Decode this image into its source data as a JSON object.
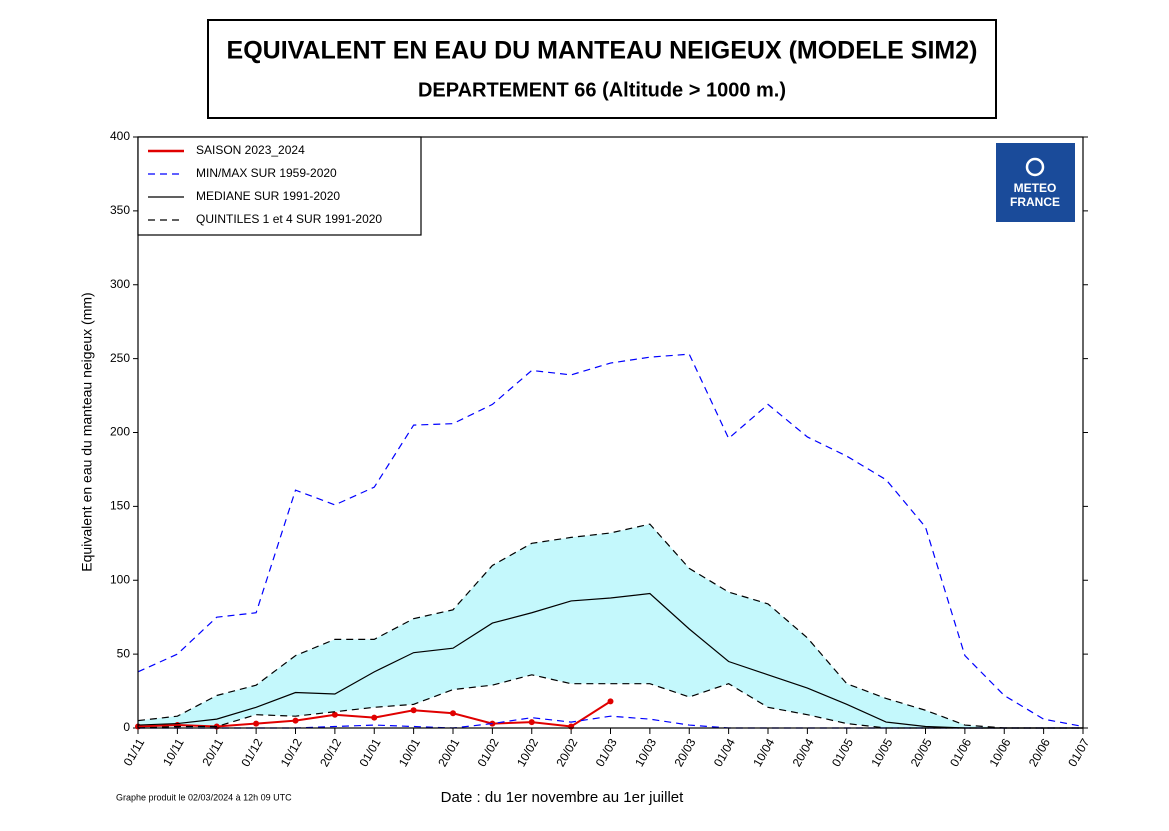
{
  "chart_data": {
    "type": "line",
    "title": "EQUIVALENT EN EAU DU MANTEAU NEIGEUX (MODELE SIM2)",
    "subtitle": "DEPARTEMENT 66  (Altitude > 1000 m.)",
    "y_label": "Equivalent en eau du manteau neigeux (mm)",
    "x_label": "Date : du 1er novembre au 1er juillet",
    "footnote": "Graphe produit le 02/03/2024 à 12h 09 UTC",
    "logo": [
      "METEO",
      "FRANCE"
    ],
    "categories": [
      "01/11",
      "10/11",
      "20/11",
      "01/12",
      "10/12",
      "20/12",
      "01/01",
      "10/01",
      "20/01",
      "01/02",
      "10/02",
      "20/02",
      "01/03",
      "10/03",
      "20/03",
      "01/04",
      "10/04",
      "20/04",
      "01/05",
      "10/05",
      "20/05",
      "01/06",
      "10/06",
      "20/06",
      "01/07"
    ],
    "ylim": [
      0,
      400
    ],
    "yticks": [
      0,
      50,
      100,
      150,
      200,
      250,
      300,
      350,
      400
    ],
    "series": [
      {
        "name": "SAISON 2023_2024",
        "color": "#e00000",
        "style": "solid",
        "markers": true,
        "values": [
          1,
          2,
          1,
          3,
          5,
          9,
          7,
          12,
          10,
          3,
          4,
          1,
          18,
          null,
          null,
          null,
          null,
          null,
          null,
          null,
          null,
          null,
          null,
          null,
          null
        ]
      },
      {
        "name": "MIN/MAX SUR 1959-2020",
        "color": "#0000ff",
        "style": "dashed",
        "values": [
          38,
          50,
          75,
          78,
          161,
          151,
          163,
          205,
          206,
          219,
          242,
          239,
          247,
          251,
          253,
          196,
          219,
          197,
          184,
          168,
          136,
          49,
          22,
          6,
          1
        ],
        "values_low": [
          0,
          0,
          0,
          0,
          0,
          1,
          2,
          1,
          0,
          3,
          7,
          4,
          8,
          6,
          2,
          0,
          0,
          0,
          0,
          0,
          0,
          0,
          0,
          0,
          0
        ]
      },
      {
        "name": "MEDIANE SUR 1991-2020",
        "color": "#000000",
        "style": "solid",
        "values": [
          2,
          3,
          6,
          14,
          24,
          23,
          38,
          51,
          54,
          71,
          78,
          86,
          88,
          91,
          67,
          45,
          36,
          27,
          16,
          4,
          1,
          0,
          0,
          0,
          0
        ]
      },
      {
        "name": "QUINTILES 1 et 4 SUR 1991-2020",
        "color": "#000000",
        "style": "dashed",
        "fill": "#c4f8fc",
        "values": [
          5,
          8,
          22,
          29,
          49,
          60,
          60,
          74,
          80,
          110,
          125,
          129,
          132,
          138,
          108,
          92,
          84,
          61,
          30,
          20,
          12,
          2,
          0,
          0,
          0
        ],
        "values_low": [
          0,
          1,
          1,
          9,
          8,
          11,
          14,
          16,
          26,
          29,
          36,
          30,
          30,
          30,
          21,
          30,
          14,
          9,
          3,
          0,
          0,
          0,
          0,
          0,
          0
        ]
      }
    ]
  }
}
